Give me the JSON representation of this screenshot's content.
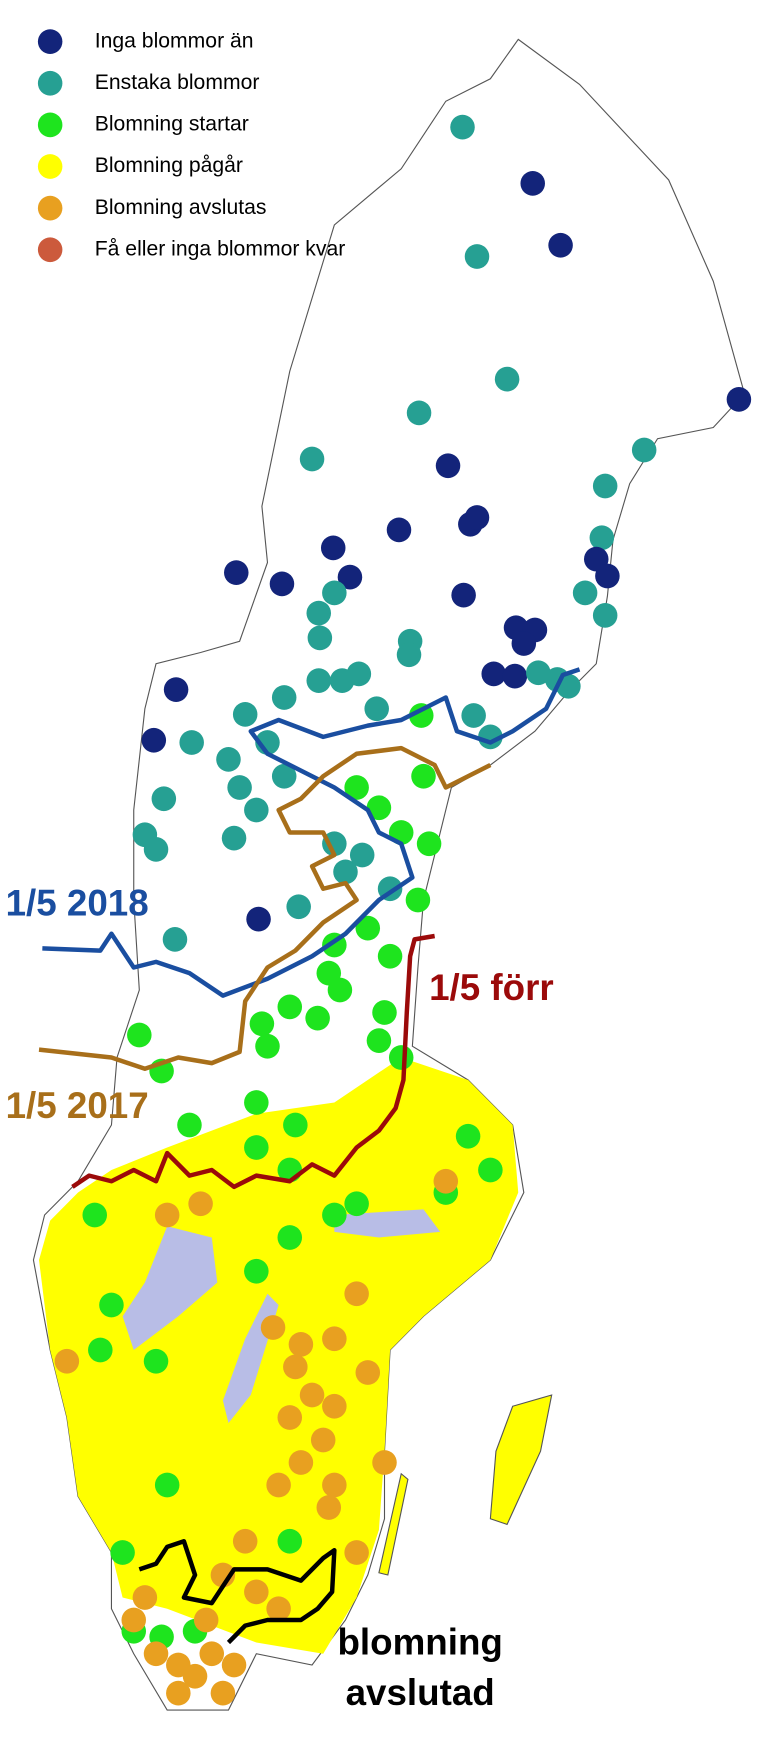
{
  "legend": {
    "items": [
      {
        "label": "Inga blommor än",
        "color": "#13247a"
      },
      {
        "label": "Enstaka blommor",
        "color": "#26a093"
      },
      {
        "label": "Blomning startar",
        "color": "#1ee41e"
      },
      {
        "label": "Blomning pågår",
        "color": "#ffff00"
      },
      {
        "label": "Blomning avslutas",
        "color": "#e8a020"
      },
      {
        "label": "Få eller inga blommor kvar",
        "color": "#cc5a3c"
      }
    ]
  },
  "annotations": [
    {
      "text": "1/5 2018",
      "color": "#1a4ea0"
    },
    {
      "text": "1/5 förr",
      "color": "#9b0a0a"
    },
    {
      "text": "1/5 2017",
      "color": "#a86f1a"
    }
  ],
  "end_label": {
    "lines": [
      "blomning",
      "avslutad"
    ],
    "color": "#000000"
  }
}
